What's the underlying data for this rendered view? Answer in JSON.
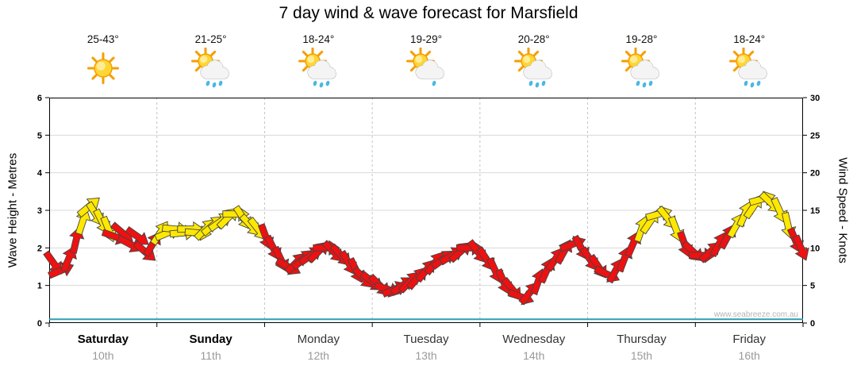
{
  "title": "7 day wind & wave forecast for Marsfield",
  "watermark": "www.seabreeze.com.au",
  "days": [
    {
      "name": "Saturday",
      "date": "10th",
      "temp_range": "25-43°",
      "icon": "sun",
      "weekend": true
    },
    {
      "name": "Sunday",
      "date": "11th",
      "temp_range": "21-25°",
      "icon": "sun-showers",
      "weekend": true
    },
    {
      "name": "Monday",
      "date": "12th",
      "temp_range": "18-24°",
      "icon": "sun-showers",
      "weekend": false
    },
    {
      "name": "Tuesday",
      "date": "13th",
      "temp_range": "19-29°",
      "icon": "sun-cloud",
      "weekend": false
    },
    {
      "name": "Wednesday",
      "date": "14th",
      "temp_range": "20-28°",
      "icon": "sun-showers",
      "weekend": false
    },
    {
      "name": "Thursday",
      "date": "15th",
      "temp_range": "19-28°",
      "icon": "sun-showers",
      "weekend": false
    },
    {
      "name": "Friday",
      "date": "16th",
      "temp_range": "18-24°",
      "icon": "sun-showers",
      "weekend": false
    }
  ],
  "colors": {
    "red": "#EE1111",
    "yellow": "#FFE800",
    "arrow_outline": "#444444",
    "wave_line": "#2E9FB0",
    "grid": "#D8D8D8",
    "day_grid": "#C4C4C4",
    "watermark": "#B5B5B5"
  },
  "chart_data": {
    "type": "wind-arrows",
    "title": "7 day wind & wave forecast for Marsfield",
    "x_categories": [
      "Saturday 10th",
      "Sunday 11th",
      "Monday 12th",
      "Tuesday 13th",
      "Wednesday 14th",
      "Thursday 15th",
      "Friday 16th"
    ],
    "left_axis": {
      "label": "Wave Height - Metres",
      "range": [
        0,
        6
      ],
      "ticks": [
        0,
        1,
        2,
        3,
        4,
        5,
        6
      ]
    },
    "right_axis": {
      "label": "Wind Speed - Knots",
      "range": [
        0,
        30
      ],
      "ticks": [
        0,
        5,
        10,
        15,
        20,
        25,
        30
      ]
    },
    "wind_series": {
      "name": "Wind Speed",
      "unit": "knots",
      "color_rule": "red = lighter winds, yellow = ~12.5 knots and above",
      "points": [
        [
          0.04,
          8,
          "r"
        ],
        [
          0.11,
          7,
          "r"
        ],
        [
          0.18,
          8.5,
          "r"
        ],
        [
          0.25,
          11,
          "r"
        ],
        [
          0.31,
          13.5,
          "y"
        ],
        [
          0.37,
          15.5,
          "y"
        ],
        [
          0.43,
          14.5,
          "y"
        ],
        [
          0.49,
          13.5,
          "y"
        ],
        [
          0.55,
          12.5,
          "y"
        ],
        [
          0.61,
          11.5,
          "r"
        ],
        [
          0.68,
          12,
          "r"
        ],
        [
          0.75,
          10.5,
          "r"
        ],
        [
          0.82,
          11.5,
          "r"
        ],
        [
          0.89,
          9.5,
          "r"
        ],
        [
          0.96,
          10.5,
          "r"
        ],
        [
          1.03,
          12,
          "y"
        ],
        [
          1.1,
          12,
          "y"
        ],
        [
          1.17,
          12.5,
          "y"
        ],
        [
          1.24,
          12,
          "y"
        ],
        [
          1.31,
          12.5,
          "y"
        ],
        [
          1.38,
          12,
          "y"
        ],
        [
          1.45,
          12.5,
          "y"
        ],
        [
          1.52,
          13,
          "y"
        ],
        [
          1.59,
          13.5,
          "y"
        ],
        [
          1.66,
          14,
          "y"
        ],
        [
          1.73,
          14.5,
          "y"
        ],
        [
          1.8,
          14,
          "y"
        ],
        [
          1.87,
          13,
          "y"
        ],
        [
          1.94,
          12.5,
          "y"
        ],
        [
          2.01,
          11.5,
          "r"
        ],
        [
          2.08,
          10,
          "r"
        ],
        [
          2.15,
          8.5,
          "r"
        ],
        [
          2.22,
          7.5,
          "r"
        ],
        [
          2.29,
          8,
          "r"
        ],
        [
          2.36,
          8.5,
          "r"
        ],
        [
          2.43,
          9,
          "r"
        ],
        [
          2.5,
          9.5,
          "r"
        ],
        [
          2.57,
          10,
          "r"
        ],
        [
          2.64,
          9.5,
          "r"
        ],
        [
          2.71,
          9,
          "r"
        ],
        [
          2.78,
          8,
          "r"
        ],
        [
          2.85,
          7,
          "r"
        ],
        [
          2.92,
          6,
          "r"
        ],
        [
          3.0,
          5.5,
          "r"
        ],
        [
          3.07,
          5,
          "r"
        ],
        [
          3.14,
          4.5,
          "r"
        ],
        [
          3.21,
          4.5,
          "r"
        ],
        [
          3.28,
          5,
          "r"
        ],
        [
          3.35,
          5.5,
          "r"
        ],
        [
          3.42,
          6,
          "r"
        ],
        [
          3.5,
          7,
          "r"
        ],
        [
          3.58,
          8,
          "r"
        ],
        [
          3.66,
          8.5,
          "r"
        ],
        [
          3.74,
          9,
          "r"
        ],
        [
          3.82,
          9.5,
          "r"
        ],
        [
          3.9,
          10,
          "r"
        ],
        [
          3.98,
          9.5,
          "r"
        ],
        [
          4.06,
          8.5,
          "r"
        ],
        [
          4.14,
          7,
          "r"
        ],
        [
          4.22,
          5.5,
          "r"
        ],
        [
          4.3,
          4.5,
          "r"
        ],
        [
          4.38,
          3.5,
          "r"
        ],
        [
          4.46,
          4,
          "r"
        ],
        [
          4.54,
          5.5,
          "r"
        ],
        [
          4.62,
          7,
          "r"
        ],
        [
          4.7,
          8.5,
          "r"
        ],
        [
          4.78,
          9.5,
          "r"
        ],
        [
          4.86,
          10.5,
          "r"
        ],
        [
          4.94,
          10,
          "r"
        ],
        [
          5.02,
          8.5,
          "r"
        ],
        [
          5.1,
          7.5,
          "r"
        ],
        [
          5.18,
          6.5,
          "r"
        ],
        [
          5.26,
          7,
          "r"
        ],
        [
          5.34,
          8.5,
          "r"
        ],
        [
          5.42,
          10.5,
          "r"
        ],
        [
          5.5,
          12.5,
          "y"
        ],
        [
          5.58,
          13.5,
          "y"
        ],
        [
          5.66,
          14.5,
          "y"
        ],
        [
          5.74,
          14,
          "y"
        ],
        [
          5.82,
          12.5,
          "y"
        ],
        [
          5.9,
          10.5,
          "r"
        ],
        [
          5.98,
          9.5,
          "r"
        ],
        [
          6.06,
          9,
          "r"
        ],
        [
          6.14,
          9.5,
          "r"
        ],
        [
          6.22,
          10.5,
          "r"
        ],
        [
          6.3,
          11.5,
          "r"
        ],
        [
          6.38,
          13,
          "y"
        ],
        [
          6.46,
          14.5,
          "y"
        ],
        [
          6.54,
          15.5,
          "y"
        ],
        [
          6.62,
          16.5,
          "y"
        ],
        [
          6.7,
          16,
          "y"
        ],
        [
          6.78,
          15,
          "y"
        ],
        [
          6.86,
          13,
          "y"
        ],
        [
          6.93,
          11,
          "r"
        ],
        [
          6.98,
          10,
          "r"
        ]
      ]
    },
    "wave_series": {
      "name": "Wave Height",
      "unit": "metres",
      "approx_constant_m": 0.1
    }
  }
}
